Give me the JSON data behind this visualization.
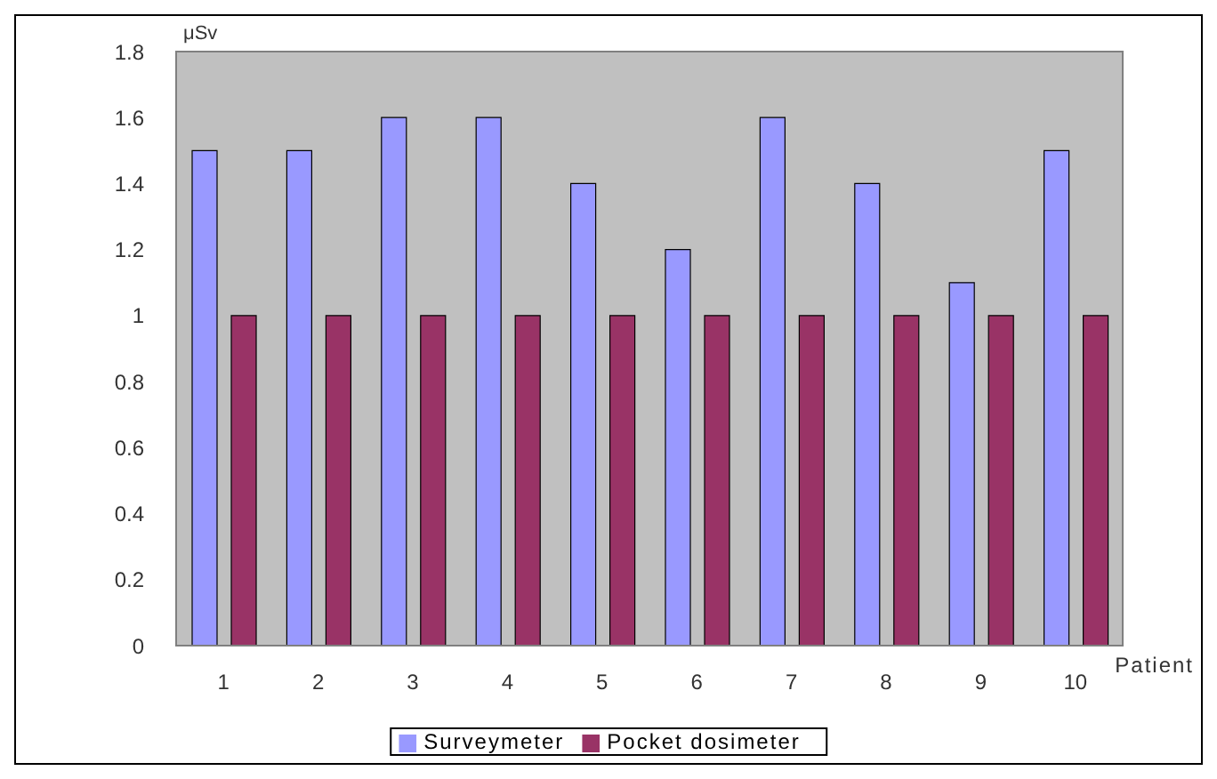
{
  "chart_data": {
    "type": "bar",
    "ylabel": "μSv",
    "xlabel": "Patient",
    "categories": [
      "1",
      "2",
      "3",
      "4",
      "5",
      "6",
      "7",
      "8",
      "9",
      "10"
    ],
    "series": [
      {
        "name": "Surveymeter",
        "color": "#9999ff",
        "values": [
          1.5,
          1.5,
          1.6,
          1.6,
          1.4,
          1.2,
          1.6,
          1.4,
          1.1,
          1.5
        ]
      },
      {
        "name": "Pocket dosimeter",
        "color": "#993366",
        "values": [
          1,
          1,
          1,
          1,
          1,
          1,
          1,
          1,
          1,
          1
        ]
      }
    ],
    "ylim": [
      0,
      1.8
    ],
    "yticks": [
      0,
      0.2,
      0.4,
      0.6,
      0.8,
      1,
      1.2,
      1.4,
      1.6,
      1.8
    ],
    "legend": "bottom"
  }
}
